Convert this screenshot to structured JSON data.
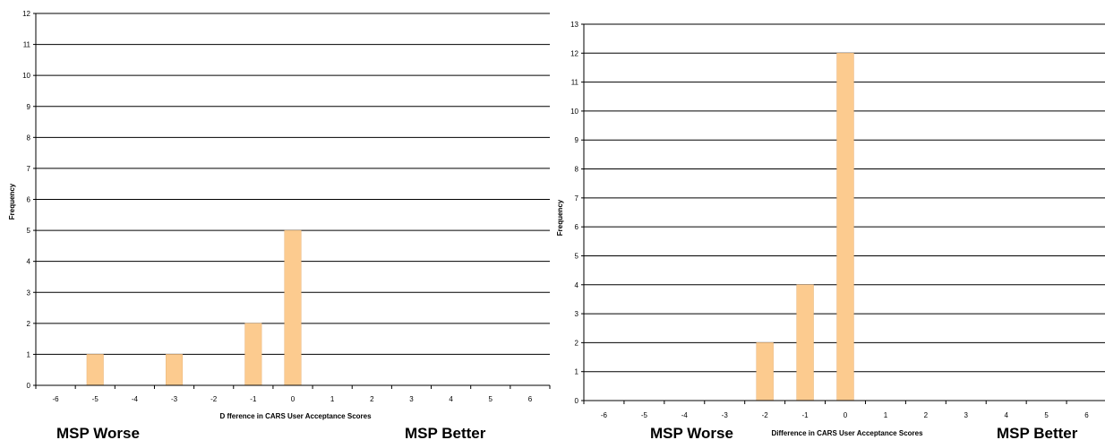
{
  "colors": {
    "bar": "#FCCB8F",
    "bar_edge": "#E9B477",
    "gridline": "#000000",
    "axis": "#000000"
  },
  "chart_data": [
    {
      "type": "bar",
      "categories": [
        "-6",
        "-5",
        "-4",
        "-3",
        "-2",
        "-1",
        "0",
        "1",
        "2",
        "3",
        "4",
        "5",
        "6"
      ],
      "values": [
        0,
        1,
        0,
        1,
        0,
        2,
        5,
        0,
        0,
        0,
        0,
        0,
        0
      ],
      "title": "",
      "xlabel": "D fference in CARS User Acceptance Scores",
      "ylabel": "Frequency",
      "ylim": [
        0,
        12
      ],
      "yticks": [
        0,
        1,
        2,
        3,
        4,
        5,
        6,
        7,
        8,
        9,
        10,
        11,
        12
      ],
      "grid": true,
      "corner_left": "MSP Worse",
      "corner_right": "MSP Better"
    },
    {
      "type": "bar",
      "categories": [
        "-6",
        "-5",
        "-4",
        "-3",
        "-2",
        "-1",
        "0",
        "1",
        "2",
        "3",
        "4",
        "5",
        "6"
      ],
      "values": [
        0,
        0,
        0,
        0,
        2,
        4,
        12,
        0,
        0,
        0,
        0,
        0,
        0
      ],
      "title": "",
      "xlabel": "Difference in CARS User Acceptance Scores",
      "ylabel": "Frequency",
      "ylim": [
        0,
        13
      ],
      "yticks": [
        0,
        1,
        2,
        3,
        4,
        5,
        6,
        7,
        8,
        9,
        10,
        11,
        12,
        13
      ],
      "grid": true,
      "corner_left": "MSP Worse",
      "corner_right": "MSP Better"
    }
  ]
}
